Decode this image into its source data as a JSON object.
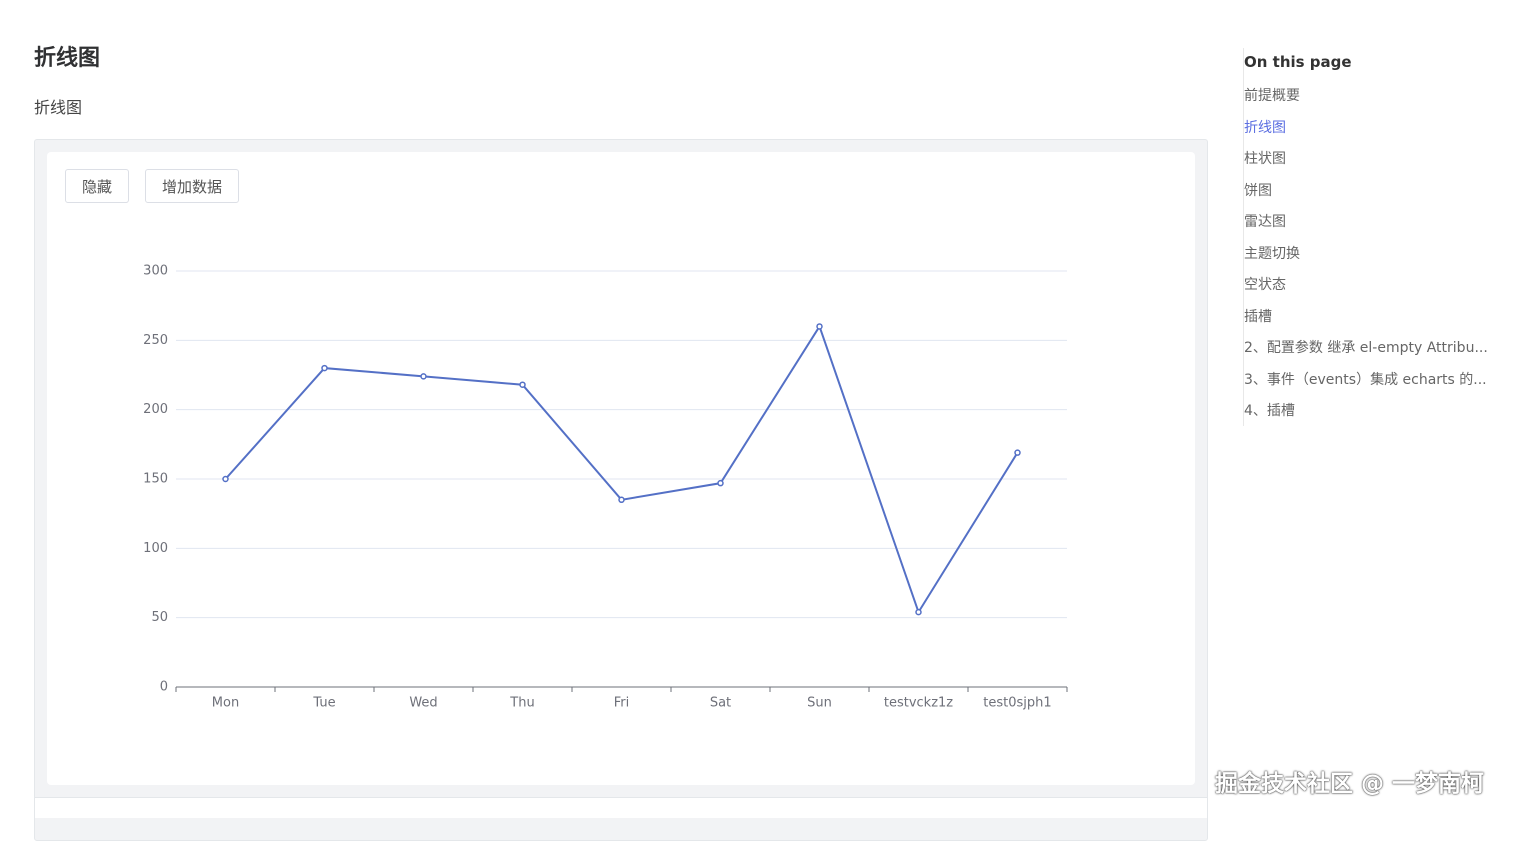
{
  "header": {
    "title": "折线图",
    "description": "折线图"
  },
  "buttons": [
    "隐藏",
    "增加数据"
  ],
  "chart_data": {
    "type": "line",
    "categories": [
      "Mon",
      "Tue",
      "Wed",
      "Thu",
      "Fri",
      "Sat",
      "Sun",
      "testvckz1z",
      "test0sjph1"
    ],
    "values": [
      150,
      230,
      224,
      218,
      135,
      147,
      260,
      54,
      169
    ],
    "color": "#5470c6",
    "ylim": [
      0,
      300
    ],
    "yticks": [
      0,
      50,
      100,
      150,
      200,
      250,
      300
    ],
    "grid": true
  },
  "toc": {
    "title": "On this page",
    "items": [
      "前提概要",
      "折线图",
      "柱状图",
      "饼图",
      "雷达图",
      "主题切换",
      "空状态",
      "插槽",
      "2、配置参数 继承 el-empty Attribu...",
      "3、事件（events）集成 echarts 的...",
      "4、插槽"
    ],
    "active": 1
  },
  "watermark": "掘金技术社区 @ 一梦南柯"
}
